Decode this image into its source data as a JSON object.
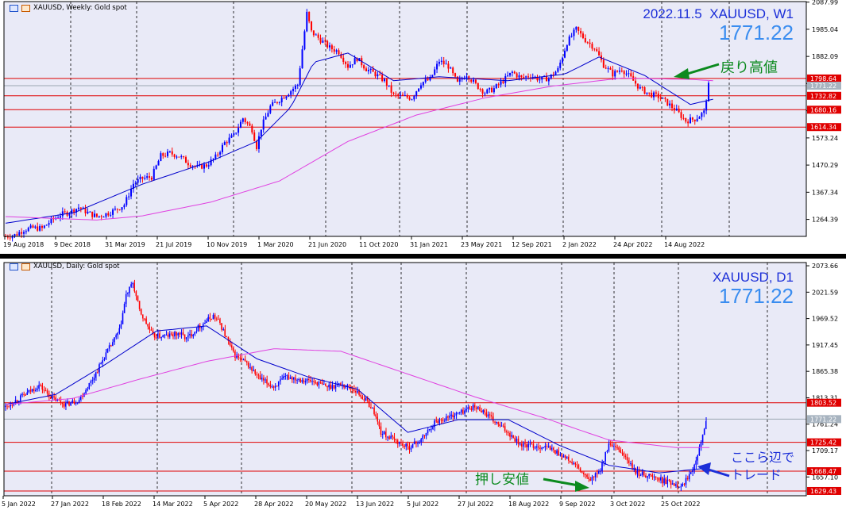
{
  "top": {
    "header": "XAUUSD, Weekly:  Gold spot",
    "date": "2022.11.5",
    "symbol": "XAUUSD, W1",
    "price": "1771.22",
    "annotation": "戻り高値",
    "y_ticks": [
      "2087.99",
      "1985.04",
      "1882.09",
      "1779.14",
      "1676.19",
      "1573.24",
      "1470.29",
      "1367.34",
      "1264.39"
    ],
    "x_ticks": [
      "19 Aug 2018",
      "9 Dec 2018",
      "31 Mar 2019",
      "21 Jul 2019",
      "10 Nov 2019",
      "1 Mar 2020",
      "21 Jun 2020",
      "11 Oct 2020",
      "31 Jan 2021",
      "23 May 2021",
      "12 Sep 2021",
      "2 Jan 2022",
      "24 Apr 2022",
      "14 Aug 2022"
    ],
    "level_tags": [
      "1798.64",
      "1771.22",
      "1732.82",
      "1680.16",
      "1614.34"
    ]
  },
  "bottom": {
    "header": "XAUUSD, Daily:  Gold spot",
    "symbol": "XAUUSD, D1",
    "price": "1771.22",
    "annotation_left": "押し安値",
    "annotation_right_1": "ここら辺で",
    "annotation_right_2": "トレード",
    "y_ticks": [
      "2073.66",
      "2021.59",
      "1969.52",
      "1917.45",
      "1865.38",
      "1813.31",
      "1761.24",
      "1709.17",
      "1657.10"
    ],
    "x_ticks": [
      "5 Jan 2022",
      "27 Jan 2022",
      "18 Feb 2022",
      "14 Mar 2022",
      "5 Apr 2022",
      "28 Apr 2022",
      "20 May 2022",
      "13 Jun 2022",
      "5 Jul 2022",
      "27 Jul 2022",
      "18 Aug 2022",
      "9 Sep 2022",
      "3 Oct 2022",
      "25 Oct 2022"
    ],
    "level_tags": [
      "1803.52",
      "1771.22",
      "1725.42",
      "1668.47",
      "1629.43"
    ]
  },
  "chart_data": [
    {
      "type": "candlestick",
      "title": "XAUUSD, Weekly:  Gold spot",
      "ylim": [
        1200,
        2090
      ],
      "horizontal_levels": [
        1798.64,
        1732.82,
        1680.16,
        1614.34
      ],
      "last_price": 1771.22,
      "close_path": [
        [
          0,
          1200
        ],
        [
          4,
          1205
        ],
        [
          8,
          1225
        ],
        [
          12,
          1232
        ],
        [
          16,
          1230
        ],
        [
          20,
          1260
        ],
        [
          24,
          1282
        ],
        [
          28,
          1292
        ],
        [
          32,
          1310
        ],
        [
          36,
          1290
        ],
        [
          40,
          1275
        ],
        [
          44,
          1285
        ],
        [
          48,
          1300
        ],
        [
          52,
          1320
        ],
        [
          56,
          1400
        ],
        [
          60,
          1420
        ],
        [
          64,
          1425
        ],
        [
          68,
          1505
        ],
        [
          72,
          1515
        ],
        [
          76,
          1505
        ],
        [
          80,
          1478
        ],
        [
          84,
          1462
        ],
        [
          88,
          1470
        ],
        [
          92,
          1500
        ],
        [
          96,
          1555
        ],
        [
          100,
          1582
        ],
        [
          104,
          1648
        ],
        [
          108,
          1605
        ],
        [
          110,
          1540
        ],
        [
          112,
          1612
        ],
        [
          116,
          1692
        ],
        [
          120,
          1718
        ],
        [
          124,
          1745
        ],
        [
          128,
          1775
        ],
        [
          130,
          1910
        ],
        [
          132,
          2045
        ],
        [
          134,
          1975
        ],
        [
          138,
          1945
        ],
        [
          142,
          1915
        ],
        [
          146,
          1900
        ],
        [
          150,
          1845
        ],
        [
          154,
          1875
        ],
        [
          158,
          1835
        ],
        [
          162,
          1815
        ],
        [
          166,
          1790
        ],
        [
          170,
          1735
        ],
        [
          174,
          1730
        ],
        [
          178,
          1725
        ],
        [
          182,
          1782
        ],
        [
          186,
          1795
        ],
        [
          190,
          1865
        ],
        [
          194,
          1845
        ],
        [
          198,
          1780
        ],
        [
          202,
          1815
        ],
        [
          206,
          1775
        ],
        [
          210,
          1745
        ],
        [
          214,
          1760
        ],
        [
          218,
          1790
        ],
        [
          222,
          1822
        ],
        [
          226,
          1800
        ],
        [
          230,
          1810
        ],
        [
          234,
          1795
        ],
        [
          238,
          1800
        ],
        [
          242,
          1832
        ],
        [
          246,
          1935
        ],
        [
          250,
          1985
        ],
        [
          254,
          1945
        ],
        [
          258,
          1915
        ],
        [
          262,
          1850
        ],
        [
          266,
          1815
        ],
        [
          270,
          1835
        ],
        [
          274,
          1800
        ],
        [
          278,
          1760
        ],
        [
          282,
          1740
        ],
        [
          286,
          1730
        ],
        [
          290,
          1705
        ],
        [
          294,
          1675
        ],
        [
          298,
          1638
        ],
        [
          302,
          1645
        ],
        [
          306,
          1670
        ],
        [
          308,
          1771
        ]
      ],
      "moving_averages": [
        {
          "name": "fast",
          "color": "#0000cc",
          "path": [
            [
              0,
              1250
            ],
            [
              30,
              1290
            ],
            [
              60,
              1398
            ],
            [
              90,
              1485
            ],
            [
              110,
              1560
            ],
            [
              125,
              1690
            ],
            [
              135,
              1860
            ],
            [
              150,
              1895
            ],
            [
              170,
              1790
            ],
            [
              190,
              1805
            ],
            [
              220,
              1790
            ],
            [
              245,
              1815
            ],
            [
              260,
              1880
            ],
            [
              280,
              1810
            ],
            [
              300,
              1700
            ],
            [
              310,
              1720
            ]
          ]
        },
        {
          "name": "slow",
          "color": "#e040e0",
          "path": [
            [
              0,
              1275
            ],
            [
              40,
              1262
            ],
            [
              60,
              1278
            ],
            [
              90,
              1330
            ],
            [
              120,
              1410
            ],
            [
              150,
              1560
            ],
            [
              180,
              1660
            ],
            [
              210,
              1725
            ],
            [
              240,
              1770
            ],
            [
              270,
              1800
            ],
            [
              300,
              1795
            ],
            [
              310,
              1790
            ]
          ]
        }
      ]
    },
    {
      "type": "candlestick",
      "title": "XAUUSD, Daily:  Gold spot",
      "ylim": [
        1620,
        2080
      ],
      "horizontal_levels": [
        1803.52,
        1725.42,
        1668.47,
        1629.43
      ],
      "last_price": 1771.22,
      "close_path": [
        [
          0,
          1795
        ],
        [
          12,
          1820
        ],
        [
          20,
          1838
        ],
        [
          28,
          1812
        ],
        [
          36,
          1800
        ],
        [
          44,
          1810
        ],
        [
          52,
          1850
        ],
        [
          60,
          1900
        ],
        [
          68,
          1945
        ],
        [
          72,
          2015
        ],
        [
          76,
          2040
        ],
        [
          80,
          1985
        ],
        [
          88,
          1935
        ],
        [
          96,
          1935
        ],
        [
          104,
          1940
        ],
        [
          108,
          1930
        ],
        [
          116,
          1955
        ],
        [
          124,
          1975
        ],
        [
          128,
          1960
        ],
        [
          136,
          1900
        ],
        [
          144,
          1880
        ],
        [
          152,
          1850
        ],
        [
          160,
          1835
        ],
        [
          168,
          1855
        ],
        [
          176,
          1850
        ],
        [
          184,
          1845
        ],
        [
          192,
          1835
        ],
        [
          200,
          1840
        ],
        [
          208,
          1830
        ],
        [
          216,
          1805
        ],
        [
          220,
          1785
        ],
        [
          224,
          1745
        ],
        [
          232,
          1730
        ],
        [
          240,
          1715
        ],
        [
          248,
          1730
        ],
        [
          256,
          1765
        ],
        [
          264,
          1775
        ],
        [
          272,
          1785
        ],
        [
          278,
          1795
        ],
        [
          284,
          1790
        ],
        [
          292,
          1765
        ],
        [
          300,
          1745
        ],
        [
          308,
          1720
        ],
        [
          316,
          1718
        ],
        [
          324,
          1715
        ],
        [
          332,
          1700
        ],
        [
          340,
          1680
        ],
        [
          348,
          1650
        ],
        [
          354,
          1665
        ],
        [
          360,
          1720
        ],
        [
          368,
          1705
        ],
        [
          376,
          1665
        ],
        [
          384,
          1660
        ],
        [
          392,
          1650
        ],
        [
          398,
          1645
        ],
        [
          404,
          1640
        ],
        [
          410,
          1675
        ],
        [
          414,
          1715
        ],
        [
          418,
          1771
        ]
      ],
      "moving_averages": [
        {
          "name": "fast",
          "color": "#0000cc",
          "path": [
            [
              0,
              1800
            ],
            [
              30,
              1820
            ],
            [
              60,
              1880
            ],
            [
              90,
              1945
            ],
            [
              120,
              1955
            ],
            [
              150,
              1890
            ],
            [
              180,
              1855
            ],
            [
              210,
              1830
            ],
            [
              240,
              1745
            ],
            [
              270,
              1770
            ],
            [
              300,
              1770
            ],
            [
              330,
              1720
            ],
            [
              360,
              1680
            ],
            [
              390,
              1665
            ],
            [
              420,
              1675
            ]
          ]
        },
        {
          "name": "slow",
          "color": "#e040e0",
          "path": [
            [
              0,
              1800
            ],
            [
              40,
              1812
            ],
            [
              80,
              1850
            ],
            [
              120,
              1885
            ],
            [
              160,
              1910
            ],
            [
              200,
              1905
            ],
            [
              240,
              1860
            ],
            [
              280,
              1815
            ],
            [
              320,
              1775
            ],
            [
              360,
              1730
            ],
            [
              400,
              1715
            ],
            [
              420,
              1715
            ]
          ]
        }
      ]
    }
  ]
}
